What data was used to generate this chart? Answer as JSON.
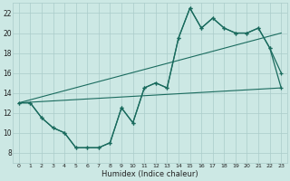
{
  "xlabel": "Humidex (Indice chaleur)",
  "background_color": "#cce8e4",
  "grid_color": "#aaccca",
  "line_color": "#1a6b5e",
  "xlim": [
    -0.5,
    23.5
  ],
  "ylim": [
    7,
    23
  ],
  "yticks": [
    8,
    10,
    12,
    14,
    16,
    18,
    20,
    22
  ],
  "xticks": [
    0,
    1,
    2,
    3,
    4,
    5,
    6,
    7,
    8,
    9,
    10,
    11,
    12,
    13,
    14,
    15,
    16,
    17,
    18,
    19,
    20,
    21,
    22,
    23
  ],
  "line1_x": [
    0,
    1,
    2,
    3,
    4,
    5,
    6,
    7,
    8,
    9,
    10,
    11,
    12,
    13,
    14,
    15,
    16,
    17,
    18,
    19,
    20,
    21,
    22,
    23
  ],
  "line1_y": [
    13.0,
    13.0,
    11.5,
    10.5,
    10.0,
    8.5,
    8.5,
    8.5,
    9.0,
    12.5,
    11.0,
    14.5,
    15.0,
    14.5,
    19.5,
    22.5,
    20.5,
    21.5,
    20.5,
    20.0,
    20.0,
    20.5,
    18.5,
    14.5
  ],
  "line2_x": [
    0,
    1,
    2,
    3,
    4,
    5,
    6,
    7,
    8,
    9,
    10,
    11,
    12,
    13,
    14,
    15,
    16,
    17,
    18,
    19,
    20,
    21,
    22,
    23
  ],
  "line2_y": [
    13.0,
    13.0,
    11.5,
    10.5,
    10.0,
    8.5,
    8.5,
    8.5,
    9.0,
    12.5,
    11.0,
    14.5,
    15.0,
    14.5,
    19.5,
    22.5,
    20.5,
    21.5,
    20.5,
    20.0,
    20.0,
    20.5,
    18.5,
    16.0
  ],
  "line3_x": [
    0,
    23
  ],
  "line3_y": [
    13.0,
    14.5
  ],
  "line4_x": [
    0,
    23
  ],
  "line4_y": [
    13.0,
    20.0
  ]
}
